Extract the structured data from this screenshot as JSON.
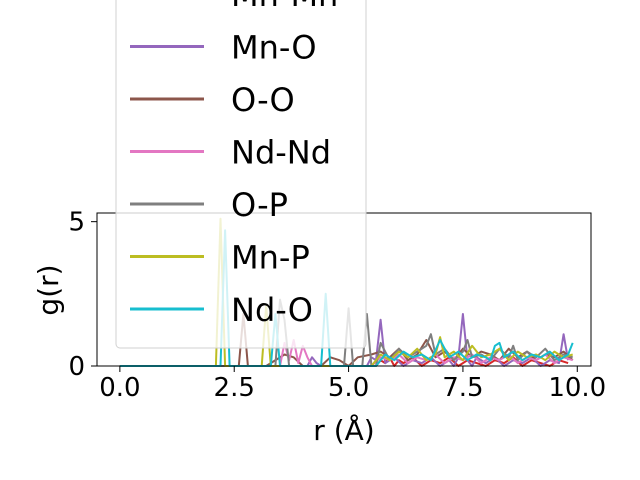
{
  "chart_data": {
    "type": "line",
    "xlabel": "r (Å)",
    "ylabel": "g(r)",
    "xlim": [
      -0.5,
      10.3
    ],
    "ylim": [
      0,
      5.3
    ],
    "xticks": [
      0.0,
      2.5,
      5.0,
      7.5,
      10.0
    ],
    "xtick_labels": [
      "0.0",
      "2.5",
      "5.0",
      "7.5",
      "10.0"
    ],
    "yticks": [
      0,
      5
    ],
    "ytick_labels": [
      "0",
      "5"
    ],
    "grid": false,
    "legend_position": "upper-left, extending above the axes",
    "series": [
      {
        "name": "Mn-Mn",
        "color": "#d62728",
        "x": [
          0.0,
          5.6,
          5.7,
          5.8,
          5.9,
          6.0,
          6.1,
          6.2,
          6.4,
          6.6,
          6.8,
          7.0,
          7.2,
          7.4,
          7.6,
          7.8,
          8.0,
          8.2,
          8.4,
          8.6,
          8.8,
          9.0,
          9.2,
          9.4,
          9.6,
          9.8
        ],
        "y": [
          0.0,
          0.0,
          0.2,
          0.1,
          0.3,
          0.0,
          0.2,
          0.1,
          0.3,
          0.0,
          0.2,
          0.1,
          0.3,
          0.0,
          0.2,
          0.1,
          0.0,
          0.2,
          0.1,
          0.3,
          0.0,
          0.2,
          0.1,
          0.0,
          0.2,
          0.1
        ]
      },
      {
        "name": "Mn-O",
        "color": "#9467bd",
        "x": [
          0.0,
          4.1,
          4.2,
          4.3,
          4.4,
          5.4,
          5.5,
          5.6,
          5.7,
          5.8,
          6.0,
          6.2,
          6.4,
          6.6,
          6.8,
          7.0,
          7.2,
          7.3,
          7.4,
          7.5,
          7.6,
          7.7,
          7.8,
          8.0,
          8.2,
          8.4,
          8.6,
          8.8,
          9.0,
          9.2,
          9.4,
          9.6,
          9.7,
          9.8
        ],
        "y": [
          0.0,
          0.0,
          0.3,
          0.1,
          0.0,
          0.0,
          0.3,
          0.2,
          1.6,
          0.1,
          0.3,
          0.0,
          0.2,
          0.1,
          0.3,
          0.0,
          0.2,
          0.0,
          0.3,
          1.8,
          0.2,
          0.0,
          0.3,
          0.1,
          0.3,
          0.0,
          0.2,
          0.1,
          0.3,
          0.0,
          0.2,
          0.1,
          1.1,
          0.2
        ]
      },
      {
        "name": "O-O",
        "color": "#8c564b",
        "x": [
          0.0,
          2.6,
          2.7,
          2.8,
          3.0,
          3.2,
          3.6,
          3.8,
          4.0,
          4.4,
          4.6,
          4.8,
          5.0,
          5.2,
          5.5,
          5.7,
          5.9,
          6.1,
          6.3,
          6.5,
          6.7,
          6.9,
          7.1,
          7.3,
          7.5,
          7.7,
          7.9,
          8.1,
          8.3,
          8.5,
          8.7,
          8.9,
          9.1,
          9.3,
          9.5,
          9.7,
          9.9
        ],
        "y": [
          0.0,
          0.0,
          1.8,
          0.0,
          0.0,
          0.0,
          0.4,
          0.3,
          0.0,
          0.0,
          0.3,
          0.2,
          0.0,
          0.3,
          0.4,
          0.5,
          0.3,
          0.6,
          0.2,
          0.4,
          0.9,
          0.3,
          0.5,
          0.2,
          0.6,
          0.3,
          0.5,
          0.4,
          0.2,
          0.6,
          0.3,
          0.5,
          0.2,
          0.4,
          0.3,
          0.5,
          0.2
        ]
      },
      {
        "name": "Nd-Nd",
        "color": "#e377c2",
        "x": [
          0.0,
          3.5,
          3.6,
          3.7,
          3.8,
          3.9,
          4.0,
          4.1,
          4.2,
          5.5,
          5.7,
          5.9,
          6.1,
          6.3,
          6.5,
          6.7,
          6.9,
          7.1,
          7.3,
          7.5,
          7.7,
          7.9,
          8.1,
          8.3,
          8.5,
          8.7,
          8.9,
          9.1,
          9.3,
          9.5,
          9.7,
          9.9
        ],
        "y": [
          0.0,
          0.0,
          0.8,
          0.2,
          0.9,
          0.1,
          0.7,
          0.3,
          0.0,
          0.0,
          0.3,
          0.2,
          0.4,
          0.1,
          0.3,
          0.2,
          0.4,
          0.1,
          0.3,
          0.2,
          0.4,
          0.1,
          0.3,
          0.2,
          0.4,
          0.1,
          0.3,
          0.2,
          0.4,
          0.1,
          0.3,
          0.2
        ]
      },
      {
        "name": "O-P",
        "color": "#7f7f7f",
        "x": [
          0.0,
          3.4,
          3.5,
          3.6,
          3.7,
          4.9,
          5.0,
          5.1,
          5.3,
          5.4,
          5.5,
          5.6,
          5.7,
          5.9,
          6.1,
          6.3,
          6.5,
          6.7,
          6.8,
          6.9,
          7.1,
          7.3,
          7.5,
          7.6,
          7.7,
          7.9,
          8.1,
          8.3,
          8.5,
          8.6,
          8.7,
          8.9,
          9.1,
          9.3,
          9.5,
          9.7,
          9.9
        ],
        "y": [
          0.0,
          0.0,
          2.3,
          1.6,
          0.0,
          0.0,
          2.0,
          0.0,
          0.0,
          1.8,
          0.0,
          0.0,
          0.8,
          0.2,
          0.6,
          0.3,
          0.5,
          0.7,
          1.1,
          0.4,
          0.6,
          0.2,
          0.5,
          0.9,
          0.3,
          0.4,
          0.2,
          0.6,
          0.3,
          0.7,
          0.2,
          0.5,
          0.3,
          0.6,
          0.2,
          0.4,
          0.3
        ]
      },
      {
        "name": "Mn-P",
        "color": "#bcbd22",
        "x": [
          0.0,
          2.1,
          2.2,
          2.3,
          3.1,
          3.2,
          3.3,
          5.5,
          5.7,
          5.9,
          6.1,
          6.3,
          6.5,
          6.7,
          6.9,
          7.0,
          7.1,
          7.3,
          7.5,
          7.7,
          7.9,
          8.1,
          8.3,
          8.5,
          8.7,
          8.9,
          9.1,
          9.3,
          9.5,
          9.7,
          9.9
        ],
        "y": [
          0.0,
          0.0,
          5.1,
          0.0,
          0.0,
          2.1,
          0.0,
          0.0,
          0.4,
          0.2,
          0.5,
          0.3,
          0.6,
          0.2,
          0.4,
          1.0,
          0.3,
          0.5,
          0.2,
          0.7,
          0.3,
          0.4,
          0.6,
          0.2,
          0.5,
          0.3,
          0.4,
          0.2,
          0.5,
          0.3,
          0.4
        ]
      },
      {
        "name": "Nd-O",
        "color": "#17becf",
        "x": [
          0.0,
          2.2,
          2.3,
          2.4,
          2.5,
          3.3,
          3.4,
          3.5,
          4.4,
          4.5,
          4.6,
          5.6,
          5.8,
          6.0,
          6.2,
          6.4,
          6.6,
          6.8,
          7.0,
          7.2,
          7.4,
          7.6,
          7.8,
          8.0,
          8.1,
          8.2,
          8.3,
          8.4,
          8.6,
          8.8,
          9.0,
          9.2,
          9.4,
          9.6,
          9.8,
          9.9
        ],
        "y": [
          0.0,
          0.0,
          4.7,
          0.0,
          0.0,
          0.0,
          1.8,
          0.0,
          0.0,
          2.5,
          0.0,
          0.0,
          0.4,
          0.2,
          0.5,
          0.3,
          0.4,
          0.2,
          0.9,
          0.3,
          0.5,
          0.2,
          0.4,
          0.3,
          0.2,
          0.7,
          0.8,
          0.3,
          0.5,
          0.2,
          0.4,
          0.3,
          0.5,
          0.2,
          0.4,
          0.8
        ]
      }
    ]
  }
}
